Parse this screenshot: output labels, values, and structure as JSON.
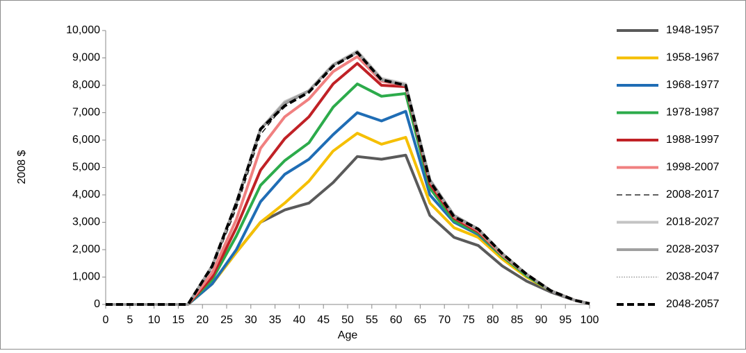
{
  "chart_data": {
    "type": "line",
    "x_label": "Age",
    "y_label": "2008 $",
    "x": [
      0,
      17,
      22,
      27,
      32,
      37,
      42,
      47,
      52,
      57,
      62,
      67,
      72,
      77,
      82,
      87,
      92,
      97,
      100
    ],
    "xlim": [
      0,
      100
    ],
    "xticks": [
      0,
      5,
      10,
      15,
      20,
      25,
      30,
      35,
      40,
      45,
      50,
      55,
      60,
      65,
      70,
      75,
      80,
      85,
      90,
      95,
      100
    ],
    "ylim": [
      0,
      10000
    ],
    "yticks": [
      0,
      {
        "value": 1000,
        "label": "1,000"
      },
      {
        "value": 2000,
        "label": "2,000"
      },
      {
        "value": 3000,
        "label": "3,000"
      },
      {
        "value": 4000,
        "label": "4,000"
      },
      {
        "value": 5000,
        "label": "5,000"
      },
      {
        "value": 6000,
        "label": "6,000"
      },
      {
        "value": 7000,
        "label": "7,000"
      },
      {
        "value": 8000,
        "label": "8,000"
      },
      {
        "value": 9000,
        "label": "9,000"
      },
      {
        "value": 10000,
        "label": "10,000"
      }
    ],
    "grid": false,
    "legend": "right",
    "series": [
      {
        "name": "1948-1957",
        "color": "#5a5a5a",
        "style": "solid",
        "weight": "thick",
        "values": [
          0,
          0,
          750,
          1900,
          3000,
          3450,
          3700,
          4450,
          5400,
          5300,
          5450,
          3250,
          2450,
          2150,
          1400,
          850,
          450,
          150,
          30
        ]
      },
      {
        "name": "1958-1967",
        "color": "#f5bf00",
        "style": "solid",
        "weight": "thick",
        "values": [
          0,
          0,
          750,
          1900,
          3000,
          3700,
          4500,
          5600,
          6250,
          5850,
          6100,
          3700,
          2800,
          2450,
          1650,
          1000,
          500,
          150,
          30
        ]
      },
      {
        "name": "1968-1977",
        "color": "#1f6db5",
        "style": "solid",
        "weight": "thick",
        "values": [
          0,
          0,
          750,
          2000,
          3750,
          4750,
          5300,
          6200,
          7000,
          6700,
          7050,
          4000,
          3000,
          2550,
          1750,
          1050,
          500,
          150,
          30
        ]
      },
      {
        "name": "1978-1987",
        "color": "#2cab4b",
        "style": "solid",
        "weight": "thick",
        "values": [
          0,
          0,
          900,
          2500,
          4350,
          5250,
          5900,
          7200,
          8050,
          7600,
          7700,
          4250,
          3050,
          2600,
          1750,
          1050,
          500,
          150,
          30
        ]
      },
      {
        "name": "1988-1997",
        "color": "#c02126",
        "style": "solid",
        "weight": "thick",
        "values": [
          0,
          0,
          1000,
          2800,
          4900,
          6050,
          6850,
          8050,
          8800,
          8000,
          7950,
          4400,
          3150,
          2650,
          1800,
          1100,
          500,
          150,
          30
        ]
      },
      {
        "name": "1998-2007",
        "color": "#f08080",
        "style": "solid",
        "weight": "thick",
        "values": [
          0,
          0,
          1150,
          3100,
          5700,
          6850,
          7500,
          8500,
          9050,
          8150,
          8000,
          4500,
          3200,
          2700,
          1800,
          1100,
          500,
          150,
          30
        ]
      },
      {
        "name": "2008-2017",
        "color": "#000000",
        "style": "dashed",
        "weight": "thin",
        "values": [
          0,
          0,
          1300,
          3500,
          6200,
          7300,
          7750,
          8700,
          9200,
          8200,
          8000,
          4500,
          3200,
          2700,
          1850,
          1100,
          500,
          150,
          30
        ]
      },
      {
        "name": "2018-2027",
        "color": "#c4c4c4",
        "style": "solid",
        "weight": "thick",
        "values": [
          0,
          0,
          1400,
          3700,
          6400,
          7400,
          7800,
          8750,
          9250,
          8250,
          8050,
          4550,
          3250,
          2750,
          1850,
          1100,
          500,
          150,
          30
        ]
      },
      {
        "name": "2028-2037",
        "color": "#a0a0a0",
        "style": "solid",
        "weight": "thick",
        "values": [
          0,
          0,
          1400,
          3700,
          6400,
          7350,
          7800,
          8750,
          9200,
          8200,
          8000,
          4550,
          3250,
          2750,
          1850,
          1100,
          500,
          150,
          30
        ]
      },
      {
        "name": "2038-2047",
        "color": "#888888",
        "style": "dotted",
        "weight": "thin",
        "values": [
          0,
          0,
          1350,
          3650,
          6350,
          7300,
          7750,
          8700,
          9200,
          8200,
          8000,
          4500,
          3200,
          2700,
          1850,
          1100,
          500,
          150,
          30
        ]
      },
      {
        "name": "2048-2057",
        "color": "#000000",
        "style": "dashed",
        "weight": "thick",
        "values": [
          0,
          0,
          1400,
          3700,
          6400,
          7250,
          7750,
          8700,
          9200,
          8200,
          8000,
          4500,
          3200,
          2750,
          1850,
          1100,
          500,
          150,
          30
        ]
      }
    ]
  }
}
